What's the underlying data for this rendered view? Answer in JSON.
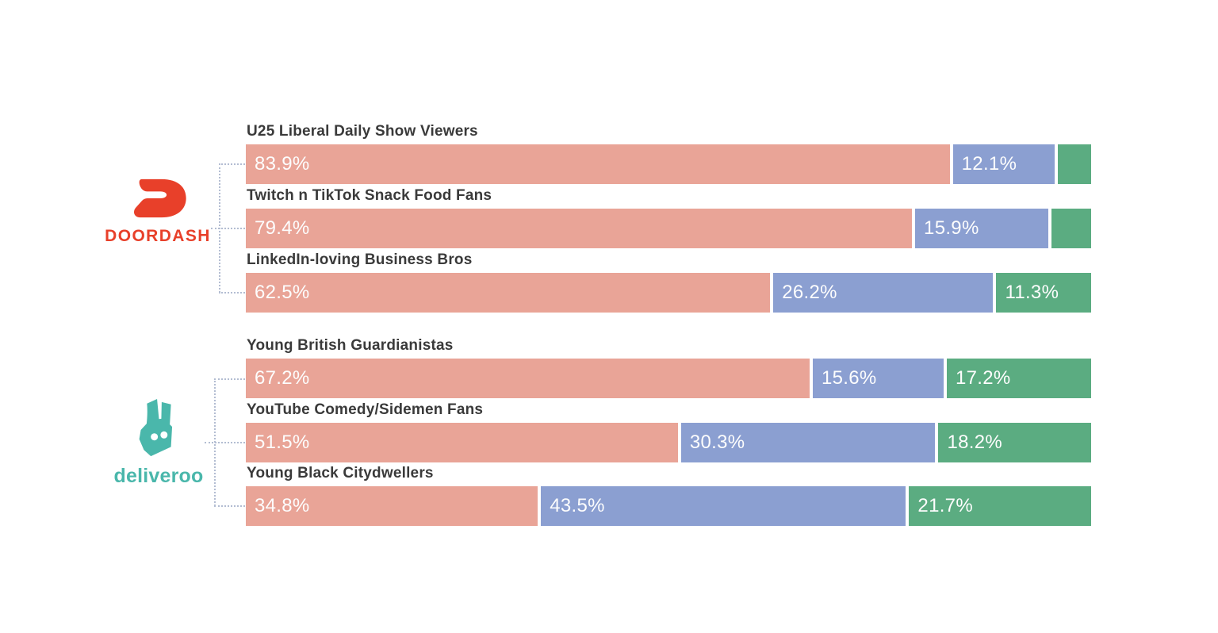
{
  "page": {
    "background": "#ffffff"
  },
  "brands": [
    {
      "name": "doordash",
      "wordmark": "DOORDASH",
      "color": "#E8402A"
    },
    {
      "name": "deliveroo",
      "wordmark": "deliveroo",
      "color": "#4AB7AB"
    }
  ],
  "chart_data": {
    "type": "bar",
    "orientation": "horizontal",
    "stacked": true,
    "unit": "%",
    "xlim": [
      0,
      100
    ],
    "grid": false,
    "legend": "none",
    "segment_colors": [
      "#E9A497",
      "#8B9FD1",
      "#5BAC81"
    ],
    "value_label_color": "#fdfdfd",
    "groups": [
      {
        "brand": "DOORDASH",
        "rows": [
          {
            "category": "U25 Liberal Daily Show Viewers",
            "values": [
              83.9,
              12.1,
              4.0
            ],
            "labels": [
              "83.9%",
              "12.1%",
              ""
            ]
          },
          {
            "category": "Twitch n TikTok Snack Food Fans",
            "values": [
              79.4,
              15.9,
              4.7
            ],
            "labels": [
              "79.4%",
              "15.9%",
              ""
            ]
          },
          {
            "category": "LinkedIn-loving Business Bros",
            "values": [
              62.5,
              26.2,
              11.3
            ],
            "labels": [
              "62.5%",
              "26.2%",
              "11.3%"
            ]
          }
        ]
      },
      {
        "brand": "deliveroo",
        "rows": [
          {
            "category": "Young British Guardianistas",
            "values": [
              67.2,
              15.6,
              17.2
            ],
            "labels": [
              "67.2%",
              "15.6%",
              "17.2%"
            ]
          },
          {
            "category": "YouTube Comedy/Sidemen Fans",
            "values": [
              51.5,
              30.3,
              18.2
            ],
            "labels": [
              "51.5%",
              "30.3%",
              "18.2%"
            ]
          },
          {
            "category": "Young Black Citydwellers",
            "values": [
              34.8,
              43.5,
              21.7
            ],
            "labels": [
              "34.8%",
              "43.5%",
              "21.7%"
            ]
          }
        ]
      }
    ]
  }
}
